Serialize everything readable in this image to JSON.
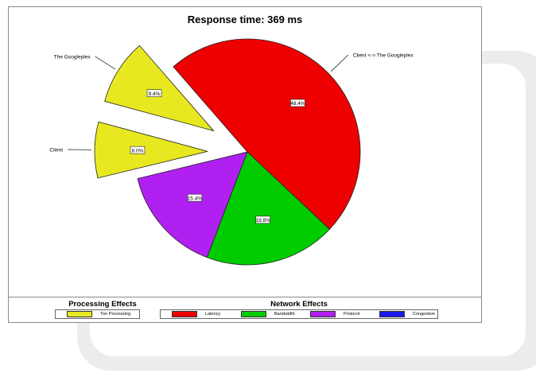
{
  "chart_data": {
    "type": "pie",
    "title": "Response time: 369 ms",
    "slices": [
      {
        "label": "Client <-> The Googleplex",
        "value": 48.4,
        "percent_label": "48.4%",
        "color": "#ee0000",
        "exploded": false
      },
      {
        "label": "",
        "value": 18.8,
        "percent_label": "18.8%",
        "color": "#00cc00",
        "exploded": false
      },
      {
        "label": "",
        "value": 15.4,
        "percent_label": "15.4%",
        "color": "#b020f0",
        "exploded": false
      },
      {
        "label": "Client",
        "value": 8.0,
        "percent_label": "8.0%",
        "color": "#e8e820",
        "exploded": true
      },
      {
        "label": "The Googleplex",
        "value": 9.4,
        "percent_label": "9.4%",
        "color": "#e8e820",
        "exploded": true
      }
    ]
  },
  "legend": {
    "processing": {
      "title": "Processing Effects",
      "items": [
        {
          "label": "Tier Processing",
          "color": "#e8e820"
        }
      ]
    },
    "network": {
      "title": "Network Effects",
      "items": [
        {
          "label": "Latency",
          "color": "#ee0000"
        },
        {
          "label": "Bandwidth",
          "color": "#00cc00"
        },
        {
          "label": "Protocol",
          "color": "#b020f0"
        },
        {
          "label": "Congestion",
          "color": "#1a1aee"
        }
      ]
    }
  }
}
